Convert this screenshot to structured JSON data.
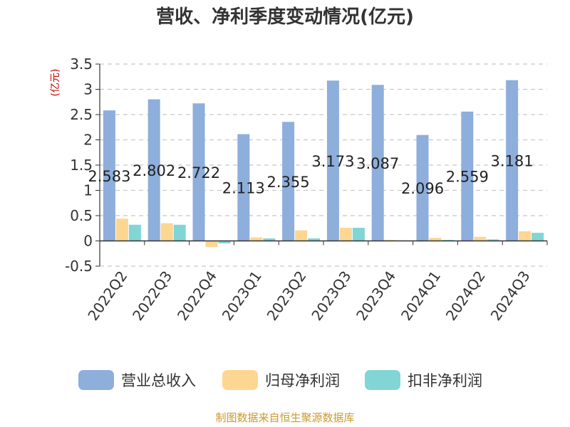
{
  "chart_data": {
    "type": "bar",
    "title": "营收、净利季度变动情况(亿元)",
    "unit_label": "(亿元)",
    "categories": [
      "2022Q2",
      "2022Q3",
      "2022Q4",
      "2023Q1",
      "2023Q2",
      "2023Q3",
      "2023Q4",
      "2024Q1",
      "2024Q2",
      "2024Q3"
    ],
    "series": [
      {
        "name": "营业总收入",
        "color": "#8eaedb",
        "values": [
          2.583,
          2.802,
          2.722,
          2.113,
          2.355,
          3.173,
          3.087,
          2.096,
          2.559,
          3.181
        ]
      },
      {
        "name": "归母净利润",
        "color": "#fdd692",
        "values": [
          0.44,
          0.35,
          -0.12,
          0.07,
          0.21,
          0.26,
          0.02,
          0.06,
          0.08,
          0.19
        ]
      },
      {
        "name": "扣非净利润",
        "color": "#82d5d5",
        "values": [
          0.32,
          0.32,
          -0.05,
          0.05,
          0.05,
          0.26,
          0.01,
          0.02,
          0.03,
          0.16
        ]
      }
    ],
    "data_labels": [
      "2.583",
      "2.802",
      "2.722",
      "2.113",
      "2.355",
      "3.173",
      "3.087",
      "2.096",
      "2.559",
      "3.181"
    ],
    "ylim": [
      -0.5,
      3.5
    ],
    "yticks": [
      "-0.5",
      "0",
      "0.5",
      "1",
      "1.5",
      "2",
      "2.5",
      "3",
      "3.5"
    ],
    "grid": true,
    "legend_position": "bottom"
  },
  "source": "制图数据来自恒生聚源数据库"
}
